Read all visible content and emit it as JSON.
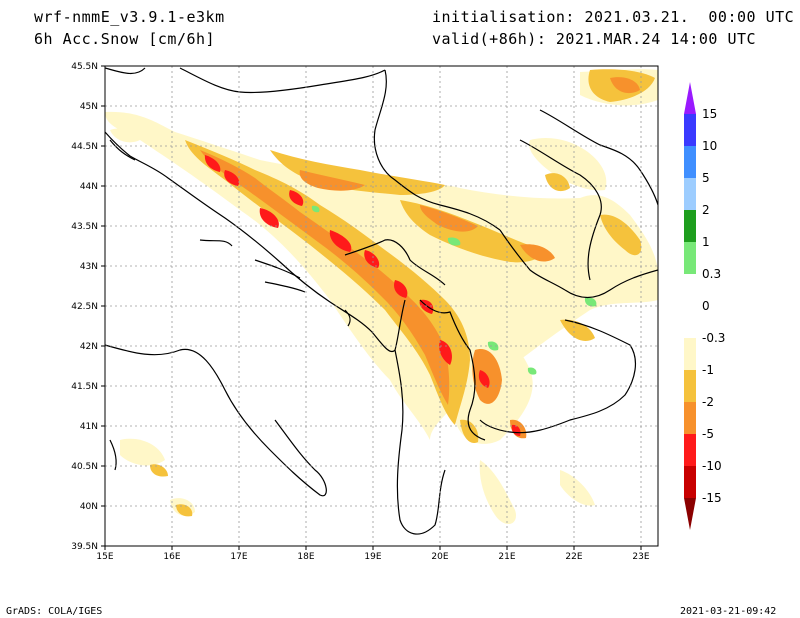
{
  "header": {
    "model": "wrf-nmmE_v3.9.1-e3km",
    "field": "6h Acc.Snow [cm/6h]",
    "init": "initialisation: 2021.03.21.  00:00 UTC",
    "valid": "valid(+86h): 2021.MAR.24 14:00 UTC"
  },
  "footer": {
    "left": "GrADS: COLA/IGES",
    "right": "2021-03-21-09:42"
  },
  "axes": {
    "lon_labels": [
      "15E",
      "16E",
      "17E",
      "18E",
      "19E",
      "20E",
      "21E",
      "22E",
      "23E"
    ],
    "lat_labels": [
      "45.5N",
      "45N",
      "44.5N",
      "44N",
      "43.5N",
      "43N",
      "42.5N",
      "42N",
      "41.5N",
      "41N",
      "40.5N",
      "40N",
      "39.5N"
    ],
    "lon_range": [
      15,
      23.25
    ],
    "lat_range": [
      39.5,
      45.5
    ],
    "grid": true
  },
  "colorbar": {
    "labels": [
      "15",
      "10",
      "5",
      "2",
      "1",
      "0.3",
      "0",
      "-0.3",
      "-1",
      "-2",
      "-5",
      "-10",
      "-15"
    ],
    "colors": [
      "#9a1aff",
      "#3a3aff",
      "#3f8fff",
      "#9dcdff",
      "#1e9e1e",
      "#78e878",
      "#ffffff",
      "#fff7c8",
      "#f5c23c",
      "#f7912c",
      "#ff1a1a",
      "#c80000",
      "#8b0000"
    ]
  },
  "colors": {
    "light": "#fff7c8",
    "mid": "#f5c23c",
    "orange": "#f7912c",
    "red": "#ff1a1a",
    "green": "#78e878"
  }
}
